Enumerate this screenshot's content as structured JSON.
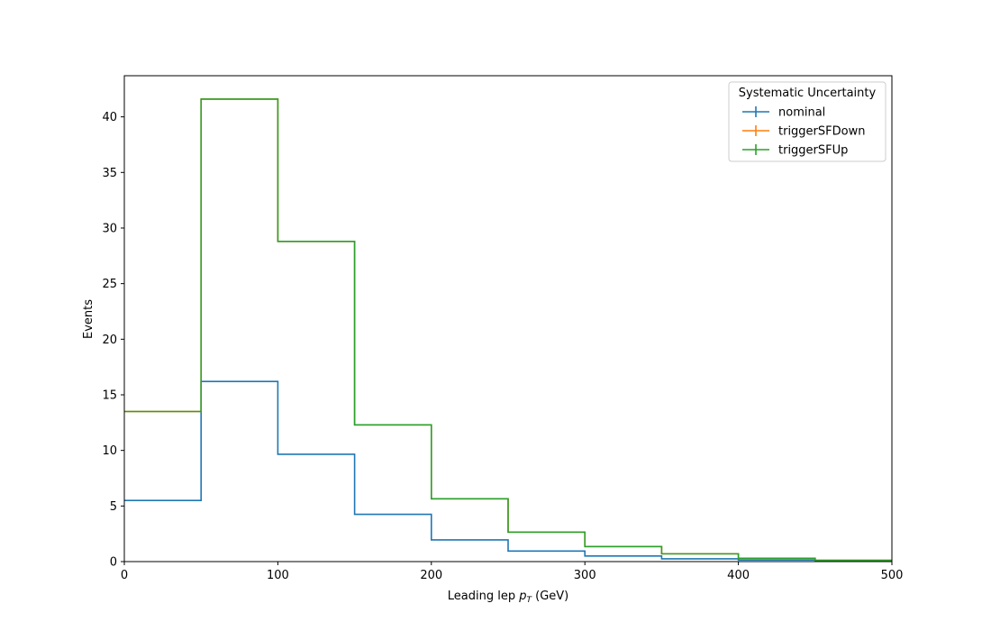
{
  "chart_data": {
    "type": "step",
    "title": "",
    "xlabel": {
      "prefix": "Leading lep ",
      "var": "p",
      "sub": "T",
      "suffix": " (GeV)"
    },
    "ylabel": "Events",
    "xlim": [
      0,
      500
    ],
    "ylim": [
      0,
      43.7
    ],
    "xticks": [
      0,
      100,
      200,
      300,
      400,
      500
    ],
    "yticks": [
      0,
      5,
      10,
      15,
      20,
      25,
      30,
      35,
      40
    ],
    "bin_edges": [
      0,
      50,
      100,
      150,
      200,
      250,
      300,
      350,
      400,
      450,
      500
    ],
    "grid": false,
    "legend": {
      "title": "Systematic Uncertainty",
      "position": "top-right"
    },
    "series": [
      {
        "name": "nominal",
        "color": "#1f77b4",
        "values": [
          5.5,
          16.2,
          9.65,
          4.25,
          1.95,
          0.95,
          0.5,
          0.25,
          0.15,
          0.07
        ]
      },
      {
        "name": "triggerSFDown",
        "color": "#ff7f0e",
        "values": [
          13.5,
          41.6,
          28.8,
          12.3,
          5.65,
          2.65,
          1.35,
          0.7,
          0.3,
          0.12
        ]
      },
      {
        "name": "triggerSFUp",
        "color": "#2ca02c",
        "values": [
          13.5,
          41.6,
          28.8,
          12.3,
          5.65,
          2.65,
          1.35,
          0.7,
          0.3,
          0.12
        ]
      }
    ]
  }
}
